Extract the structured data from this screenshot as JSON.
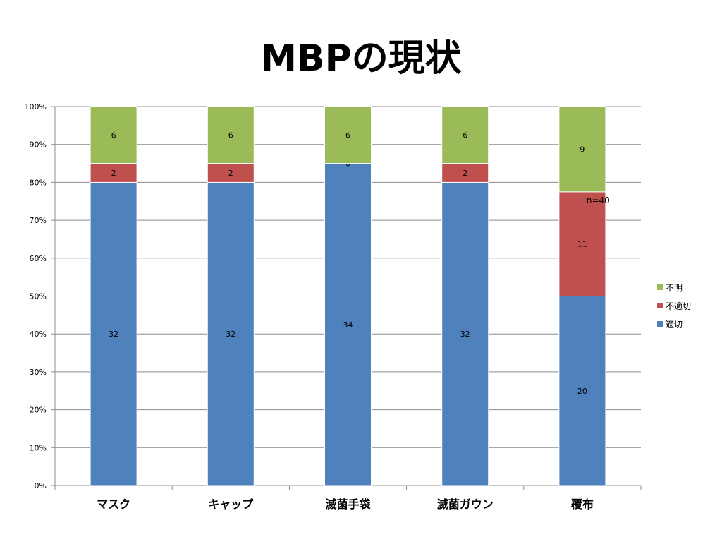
{
  "slide": {
    "title": "MBPの現状"
  },
  "chart_data": {
    "type": "bar",
    "stacked": true,
    "percent_stacked": true,
    "title": "MBPの現状",
    "categories": [
      "マスク",
      "キャップ",
      "滅菌手袋",
      "滅菌ガウン",
      "覆布"
    ],
    "series": [
      {
        "name": "適切",
        "color": "#4F81BD",
        "values": [
          32,
          32,
          34,
          32,
          20
        ]
      },
      {
        "name": "不適切",
        "color": "#C0504D",
        "values": [
          2,
          2,
          0,
          2,
          11
        ]
      },
      {
        "name": "不明",
        "color": "#9BBB59",
        "values": [
          6,
          6,
          6,
          6,
          9
        ]
      }
    ],
    "y_ticks": [
      "0%",
      "10%",
      "20%",
      "30%",
      "40%",
      "50%",
      "60%",
      "70%",
      "80%",
      "90%",
      "100%"
    ],
    "ylim": [
      0,
      100
    ],
    "grid": true,
    "legend_position": "right",
    "legend_order": [
      "不明",
      "不適切",
      "適切"
    ],
    "annotation": "n=40"
  }
}
